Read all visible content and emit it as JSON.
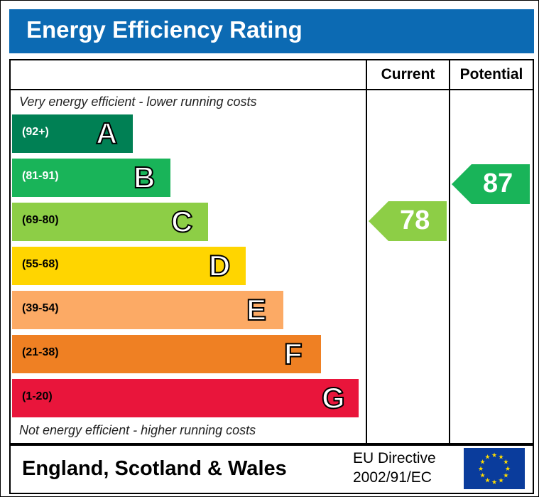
{
  "title": "Energy Efficiency Rating",
  "columns": {
    "current": "Current",
    "potential": "Potential"
  },
  "top_caption": "Very energy efficient - lower running costs",
  "bottom_caption": "Not energy efficient - higher running costs",
  "footer": {
    "region": "England, Scotland & Wales",
    "directive_line1": "EU Directive",
    "directive_line2": "2002/91/EC"
  },
  "chart_data": {
    "type": "bar",
    "categories": [
      "A",
      "B",
      "C",
      "D",
      "E",
      "F",
      "G"
    ],
    "ranges": [
      "(92+)",
      "(81-91)",
      "(69-80)",
      "(55-68)",
      "(39-54)",
      "(21-38)",
      "(1-20)"
    ],
    "colors": [
      "#008054",
      "#19b459",
      "#8dce46",
      "#ffd500",
      "#fcaa65",
      "#ef8023",
      "#e9153b"
    ],
    "range_colors": [
      "#ffffff",
      "#ffffff",
      "#000000",
      "#000000",
      "#000000",
      "#000000",
      "#000000"
    ],
    "current": 78,
    "potential": 87,
    "current_color": "#8dce46",
    "potential_color": "#19b459"
  }
}
